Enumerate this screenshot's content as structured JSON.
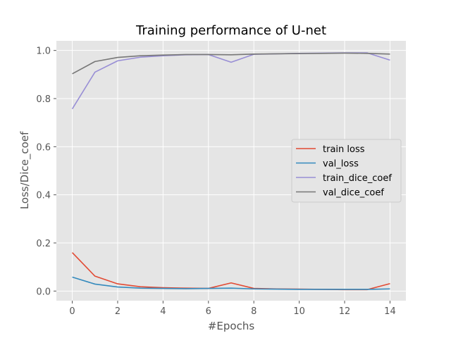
{
  "chart_data": {
    "type": "line",
    "title": "Training performance of U-net",
    "xlabel": "#Epochs",
    "ylabel": "Loss/Dice_coef",
    "xlim": [
      -0.7,
      14.7
    ],
    "ylim": [
      -0.04,
      1.04
    ],
    "xticks": [
      0,
      2,
      4,
      6,
      8,
      10,
      12,
      14
    ],
    "yticks": [
      0.0,
      0.2,
      0.4,
      0.6,
      0.8,
      1.0
    ],
    "xtick_labels": [
      "0",
      "2",
      "4",
      "6",
      "8",
      "10",
      "12",
      "14"
    ],
    "ytick_labels": [
      "0.0",
      "0.2",
      "0.4",
      "0.6",
      "0.8",
      "1.0"
    ],
    "grid": true,
    "legend_position": "center-right",
    "x": [
      0,
      1,
      2,
      3,
      4,
      5,
      6,
      7,
      8,
      9,
      10,
      11,
      12,
      13,
      14
    ],
    "series": [
      {
        "name": "train loss",
        "color": "#E24A33",
        "values": [
          0.16,
          0.062,
          0.03,
          0.018,
          0.014,
          0.012,
          0.011,
          0.034,
          0.011,
          0.009,
          0.008,
          0.007,
          0.006,
          0.006,
          0.031
        ]
      },
      {
        "name": "val_loss",
        "color": "#348ABD",
        "values": [
          0.058,
          0.029,
          0.017,
          0.012,
          0.011,
          0.01,
          0.011,
          0.012,
          0.009,
          0.008,
          0.007,
          0.007,
          0.007,
          0.007,
          0.009
        ]
      },
      {
        "name": "train_dice_coef",
        "color": "#988ED5",
        "values": [
          0.757,
          0.91,
          0.957,
          0.972,
          0.978,
          0.982,
          0.983,
          0.951,
          0.984,
          0.986,
          0.988,
          0.989,
          0.99,
          0.99,
          0.96
        ]
      },
      {
        "name": "val_dice_coef",
        "color": "#777777",
        "values": [
          0.903,
          0.954,
          0.971,
          0.978,
          0.981,
          0.983,
          0.983,
          0.982,
          0.985,
          0.986,
          0.987,
          0.988,
          0.989,
          0.988,
          0.985
        ]
      }
    ]
  }
}
